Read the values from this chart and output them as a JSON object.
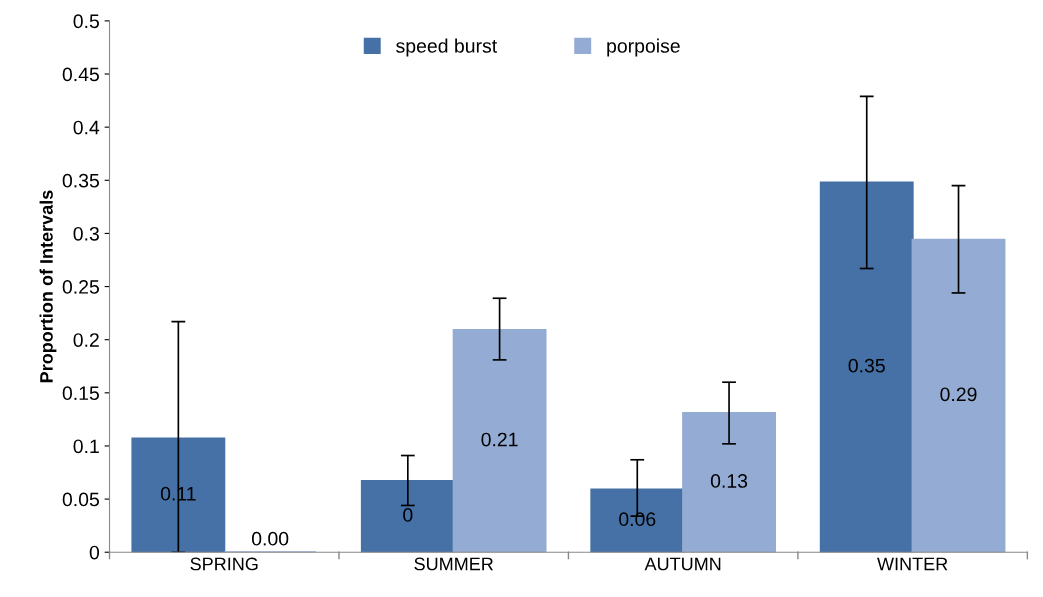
{
  "chart_data": {
    "type": "bar",
    "ylabel": "Proportion of Intervals",
    "categories": [
      "SPRING",
      "SUMMER",
      "AUTUMN",
      "WINTER"
    ],
    "series": [
      {
        "name": "speed burst",
        "color": "#4571a6",
        "values": [
          0.107,
          0.067,
          0.059,
          0.348
        ],
        "errors": [
          [
            0.0,
            0.217
          ],
          [
            0.044,
            0.091
          ],
          [
            0.034,
            0.087
          ],
          [
            0.267,
            0.429
          ]
        ],
        "value_labels": [
          "0.11",
          "0",
          "0.06",
          "0.35"
        ]
      },
      {
        "name": "porpoise",
        "color": "#94abd3",
        "values": [
          0.0,
          0.209,
          0.131,
          0.294
        ],
        "errors": [
          null,
          [
            0.181,
            0.239
          ],
          [
            0.102,
            0.16
          ],
          [
            0.244,
            0.345
          ]
        ],
        "value_labels": [
          "0.00",
          "0.21",
          "0.13",
          "0.29"
        ]
      }
    ],
    "ylim": [
      0,
      0.5
    ],
    "yticks": [
      0,
      0.05,
      0.1,
      0.15,
      0.2,
      0.25,
      0.3,
      0.35,
      0.4,
      0.45,
      0.5
    ],
    "grid": false,
    "legend": "top"
  }
}
